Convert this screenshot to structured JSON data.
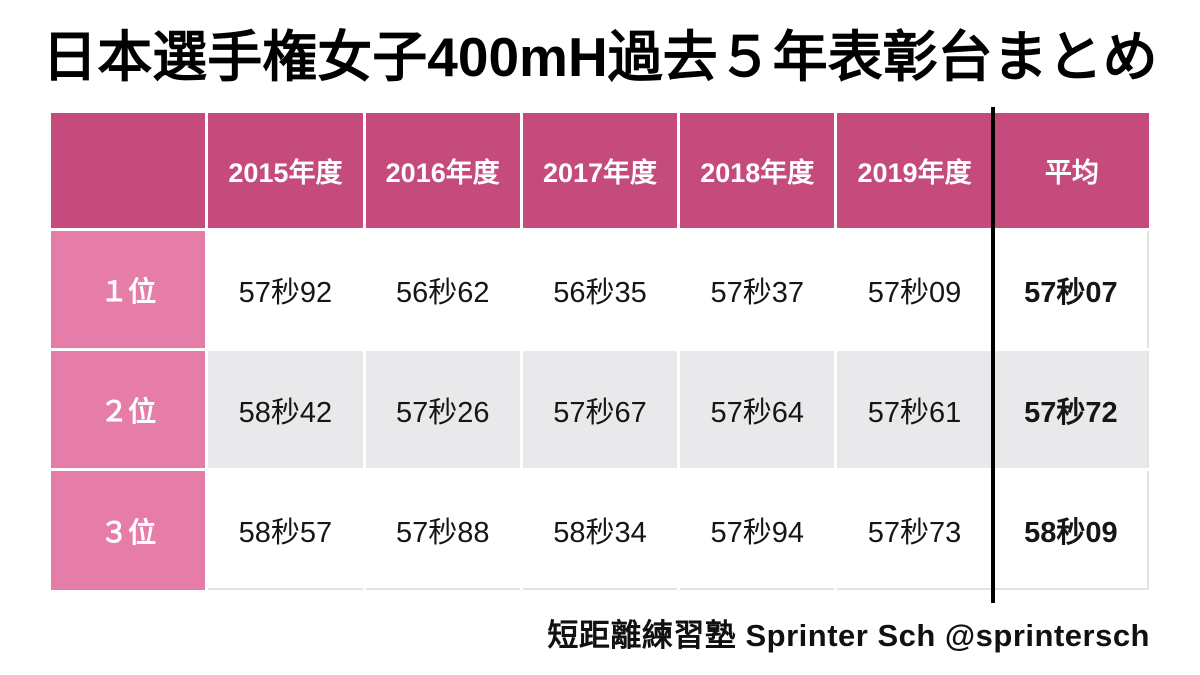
{
  "title": "日本選手権女子400mH過去５年表彰台まとめ",
  "table": {
    "corner_label": "",
    "columns": [
      "2015年度",
      "2016年度",
      "2017年度",
      "2018年度",
      "2019年度",
      "平均"
    ],
    "rows": [
      {
        "rank": "１位",
        "values": [
          "57秒92",
          "56秒62",
          "56秒35",
          "57秒37",
          "57秒09"
        ],
        "average": "57秒07"
      },
      {
        "rank": "２位",
        "values": [
          "58秒42",
          "57秒26",
          "57秒67",
          "57秒64",
          "57秒61"
        ],
        "average": "57秒72"
      },
      {
        "rank": "３位",
        "values": [
          "58秒57",
          "57秒88",
          "58秒34",
          "57秒94",
          "57秒73"
        ],
        "average": "58秒09"
      }
    ]
  },
  "footer": {
    "credit": "短距離練習塾 Sprinter Sch @sprintersch"
  },
  "colors": {
    "header_pink": "#c54b7d",
    "rank_pink": "#e67ca8",
    "alt_row_gray": "#e9e9eb",
    "divider_black": "#000000",
    "cell_border_gray": "#e3e3e5"
  },
  "chart_data": {
    "type": "table",
    "title": "日本選手権女子400mH過去５年表彰台まとめ",
    "columns": [
      "2015年度",
      "2016年度",
      "2017年度",
      "2018年度",
      "2019年度",
      "平均"
    ],
    "row_labels": [
      "１位",
      "２位",
      "３位"
    ],
    "unit": "秒 (seconds)",
    "rows_seconds": [
      [
        57.92,
        56.62,
        56.35,
        57.37,
        57.09,
        57.07
      ],
      [
        58.42,
        57.26,
        57.67,
        57.64,
        57.61,
        57.72
      ],
      [
        58.57,
        57.88,
        58.34,
        57.94,
        57.73,
        58.09
      ]
    ],
    "notes": "平均 (average) column is separated by a bold black vertical rule and rendered in bold"
  }
}
